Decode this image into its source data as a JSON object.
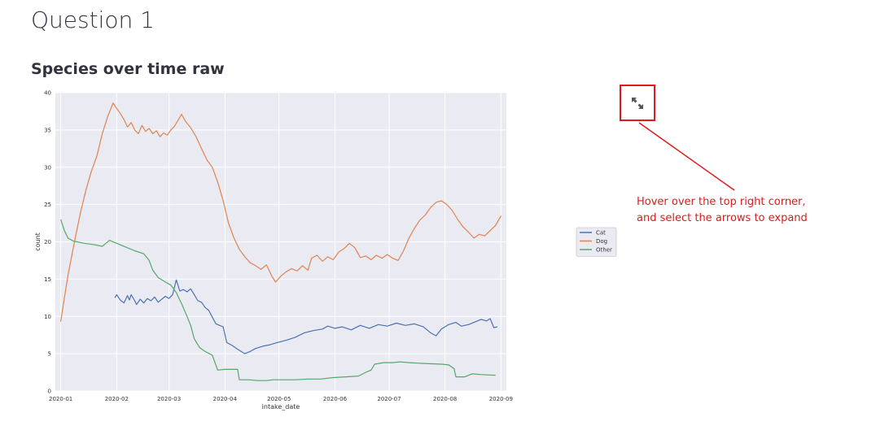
{
  "page": {
    "title": "Question 1",
    "section_title": "Species over time raw",
    "annotation": {
      "line1": "Hover over the top right corner,",
      "line2": "and select the arrows to expand"
    },
    "icons": {
      "expand": "expand-arrows-icon"
    },
    "colors": {
      "annotation": "#e0191b"
    }
  },
  "chart_data": {
    "type": "line",
    "title": "",
    "xlabel": "intake_date",
    "ylabel": "count",
    "ylim": [
      0,
      40
    ],
    "xlim": [
      "2019-12-29",
      "2020-09-04"
    ],
    "x_ticks": [
      "2020-01",
      "2020-02",
      "2020-03",
      "2020-04",
      "2020-05",
      "2020-06",
      "2020-07",
      "2020-08",
      "2020-09"
    ],
    "y_ticks": [
      0,
      5,
      10,
      15,
      20,
      25,
      30,
      35,
      40
    ],
    "grid": true,
    "legend": "right-outside",
    "series": [
      {
        "name": "Cat",
        "color": "#4c72b0",
        "points": [
          [
            "2020-01-31",
            12.5
          ],
          [
            "2020-02-01",
            12.9
          ],
          [
            "2020-02-03",
            12.2
          ],
          [
            "2020-02-05",
            11.8
          ],
          [
            "2020-02-07",
            12.8
          ],
          [
            "2020-02-08",
            12.2
          ],
          [
            "2020-02-09",
            12.9
          ],
          [
            "2020-02-11",
            12.1
          ],
          [
            "2020-02-12",
            11.6
          ],
          [
            "2020-02-14",
            12.3
          ],
          [
            "2020-02-16",
            11.8
          ],
          [
            "2020-02-18",
            12.4
          ],
          [
            "2020-02-20",
            12.1
          ],
          [
            "2020-02-22",
            12.6
          ],
          [
            "2020-02-24",
            11.9
          ],
          [
            "2020-02-26",
            12.3
          ],
          [
            "2020-02-28",
            12.7
          ],
          [
            "2020-03-01",
            12.4
          ],
          [
            "2020-03-03",
            12.9
          ],
          [
            "2020-03-05",
            14.9
          ],
          [
            "2020-03-07",
            13.4
          ],
          [
            "2020-03-09",
            13.6
          ],
          [
            "2020-03-11",
            13.3
          ],
          [
            "2020-03-13",
            13.7
          ],
          [
            "2020-03-15",
            12.9
          ],
          [
            "2020-03-17",
            12.1
          ],
          [
            "2020-03-19",
            11.9
          ],
          [
            "2020-03-21",
            11.2
          ],
          [
            "2020-03-23",
            10.8
          ],
          [
            "2020-03-25",
            9.9
          ],
          [
            "2020-03-27",
            9.0
          ],
          [
            "2020-03-31",
            8.6
          ],
          [
            "2020-04-02",
            6.5
          ],
          [
            "2020-04-05",
            6.1
          ],
          [
            "2020-04-08",
            5.6
          ],
          [
            "2020-04-12",
            5.0
          ],
          [
            "2020-04-15",
            5.3
          ],
          [
            "2020-04-18",
            5.7
          ],
          [
            "2020-04-22",
            6.0
          ],
          [
            "2020-04-26",
            6.2
          ],
          [
            "2020-04-30",
            6.5
          ],
          [
            "2020-05-05",
            6.8
          ],
          [
            "2020-05-10",
            7.2
          ],
          [
            "2020-05-15",
            7.8
          ],
          [
            "2020-05-20",
            8.1
          ],
          [
            "2020-05-25",
            8.3
          ],
          [
            "2020-05-28",
            8.7
          ],
          [
            "2020-06-01",
            8.4
          ],
          [
            "2020-06-05",
            8.6
          ],
          [
            "2020-06-10",
            8.2
          ],
          [
            "2020-06-15",
            8.8
          ],
          [
            "2020-06-20",
            8.4
          ],
          [
            "2020-06-25",
            8.9
          ],
          [
            "2020-06-30",
            8.7
          ],
          [
            "2020-07-05",
            9.1
          ],
          [
            "2020-07-10",
            8.8
          ],
          [
            "2020-07-15",
            9.0
          ],
          [
            "2020-07-20",
            8.6
          ],
          [
            "2020-07-24",
            7.8
          ],
          [
            "2020-07-27",
            7.4
          ],
          [
            "2020-07-30",
            8.3
          ],
          [
            "2020-08-03",
            8.9
          ],
          [
            "2020-08-07",
            9.2
          ],
          [
            "2020-08-10",
            8.7
          ],
          [
            "2020-08-14",
            8.9
          ],
          [
            "2020-08-18",
            9.3
          ],
          [
            "2020-08-21",
            9.6
          ],
          [
            "2020-08-24",
            9.4
          ],
          [
            "2020-08-26",
            9.7
          ],
          [
            "2020-08-28",
            8.5
          ],
          [
            "2020-08-30",
            8.6
          ]
        ]
      },
      {
        "name": "Dog",
        "color": "#dd8452",
        "points": [
          [
            "2020-01-01",
            9.3
          ],
          [
            "2020-01-03",
            12.5
          ],
          [
            "2020-01-05",
            15.5
          ],
          [
            "2020-01-07",
            18.0
          ],
          [
            "2020-01-09",
            20.5
          ],
          [
            "2020-01-12",
            24.0
          ],
          [
            "2020-01-15",
            27.0
          ],
          [
            "2020-01-18",
            29.5
          ],
          [
            "2020-01-21",
            31.5
          ],
          [
            "2020-01-24",
            34.5
          ],
          [
            "2020-01-27",
            36.8
          ],
          [
            "2020-01-30",
            38.6
          ],
          [
            "2020-02-01",
            37.9
          ],
          [
            "2020-02-03",
            37.2
          ],
          [
            "2020-02-05",
            36.4
          ],
          [
            "2020-02-07",
            35.4
          ],
          [
            "2020-02-09",
            36.0
          ],
          [
            "2020-02-11",
            35.0
          ],
          [
            "2020-02-13",
            34.5
          ],
          [
            "2020-02-15",
            35.6
          ],
          [
            "2020-02-17",
            34.8
          ],
          [
            "2020-02-19",
            35.2
          ],
          [
            "2020-02-21",
            34.5
          ],
          [
            "2020-02-23",
            34.9
          ],
          [
            "2020-02-25",
            34.1
          ],
          [
            "2020-02-27",
            34.6
          ],
          [
            "2020-02-29",
            34.3
          ],
          [
            "2020-03-02",
            35.0
          ],
          [
            "2020-03-04",
            35.5
          ],
          [
            "2020-03-06",
            36.3
          ],
          [
            "2020-03-08",
            37.1
          ],
          [
            "2020-03-10",
            36.2
          ],
          [
            "2020-03-13",
            35.3
          ],
          [
            "2020-03-16",
            34.1
          ],
          [
            "2020-03-19",
            32.5
          ],
          [
            "2020-03-22",
            31.0
          ],
          [
            "2020-03-25",
            30.0
          ],
          [
            "2020-03-28",
            28.0
          ],
          [
            "2020-03-31",
            25.5
          ],
          [
            "2020-04-03",
            22.5
          ],
          [
            "2020-04-06",
            20.5
          ],
          [
            "2020-04-09",
            19.0
          ],
          [
            "2020-04-12",
            18.0
          ],
          [
            "2020-04-15",
            17.2
          ],
          [
            "2020-04-18",
            16.8
          ],
          [
            "2020-04-21",
            16.3
          ],
          [
            "2020-04-24",
            16.9
          ],
          [
            "2020-04-27",
            15.4
          ],
          [
            "2020-04-29",
            14.6
          ],
          [
            "2020-05-02",
            15.4
          ],
          [
            "2020-05-05",
            16.0
          ],
          [
            "2020-05-08",
            16.4
          ],
          [
            "2020-05-11",
            16.1
          ],
          [
            "2020-05-14",
            16.8
          ],
          [
            "2020-05-17",
            16.2
          ],
          [
            "2020-05-19",
            17.8
          ],
          [
            "2020-05-22",
            18.2
          ],
          [
            "2020-05-25",
            17.4
          ],
          [
            "2020-05-28",
            18.0
          ],
          [
            "2020-05-31",
            17.6
          ],
          [
            "2020-06-03",
            18.6
          ],
          [
            "2020-06-06",
            19.1
          ],
          [
            "2020-06-09",
            19.8
          ],
          [
            "2020-06-12",
            19.2
          ],
          [
            "2020-06-15",
            17.9
          ],
          [
            "2020-06-18",
            18.1
          ],
          [
            "2020-06-21",
            17.6
          ],
          [
            "2020-06-24",
            18.2
          ],
          [
            "2020-06-27",
            17.8
          ],
          [
            "2020-06-30",
            18.3
          ],
          [
            "2020-07-03",
            17.8
          ],
          [
            "2020-07-06",
            17.5
          ],
          [
            "2020-07-09",
            18.8
          ],
          [
            "2020-07-12",
            20.5
          ],
          [
            "2020-07-15",
            21.8
          ],
          [
            "2020-07-18",
            22.9
          ],
          [
            "2020-07-21",
            23.6
          ],
          [
            "2020-07-24",
            24.6
          ],
          [
            "2020-07-27",
            25.3
          ],
          [
            "2020-07-30",
            25.5
          ],
          [
            "2020-08-02",
            25.0
          ],
          [
            "2020-08-05",
            24.2
          ],
          [
            "2020-08-08",
            23.0
          ],
          [
            "2020-08-11",
            22.0
          ],
          [
            "2020-08-14",
            21.3
          ],
          [
            "2020-08-17",
            20.5
          ],
          [
            "2020-08-20",
            21.0
          ],
          [
            "2020-08-23",
            20.8
          ],
          [
            "2020-08-26",
            21.5
          ],
          [
            "2020-08-29",
            22.2
          ],
          [
            "2020-09-01",
            23.5
          ]
        ]
      },
      {
        "name": "Other",
        "color": "#55a868",
        "points": [
          [
            "2020-01-01",
            23.0
          ],
          [
            "2020-01-03",
            21.5
          ],
          [
            "2020-01-05",
            20.5
          ],
          [
            "2020-01-08",
            20.1
          ],
          [
            "2020-01-14",
            19.8
          ],
          [
            "2020-01-20",
            19.6
          ],
          [
            "2020-01-24",
            19.4
          ],
          [
            "2020-01-28",
            20.2
          ],
          [
            "2020-02-01",
            19.8
          ],
          [
            "2020-02-06",
            19.3
          ],
          [
            "2020-02-11",
            18.8
          ],
          [
            "2020-02-16",
            18.4
          ],
          [
            "2020-02-19",
            17.5
          ],
          [
            "2020-02-21",
            16.2
          ],
          [
            "2020-02-24",
            15.2
          ],
          [
            "2020-02-28",
            14.6
          ],
          [
            "2020-03-02",
            14.2
          ],
          [
            "2020-03-05",
            13.2
          ],
          [
            "2020-03-08",
            11.7
          ],
          [
            "2020-03-11",
            10.0
          ],
          [
            "2020-03-13",
            8.8
          ],
          [
            "2020-03-15",
            7.0
          ],
          [
            "2020-03-18",
            5.8
          ],
          [
            "2020-03-21",
            5.3
          ],
          [
            "2020-03-25",
            4.8
          ],
          [
            "2020-03-28",
            2.8
          ],
          [
            "2020-04-01",
            2.9
          ],
          [
            "2020-04-05",
            2.9
          ],
          [
            "2020-04-08",
            2.9
          ],
          [
            "2020-04-09",
            1.5
          ],
          [
            "2020-04-14",
            1.5
          ],
          [
            "2020-04-19",
            1.4
          ],
          [
            "2020-04-24",
            1.4
          ],
          [
            "2020-04-28",
            1.5
          ],
          [
            "2020-05-03",
            1.5
          ],
          [
            "2020-05-10",
            1.5
          ],
          [
            "2020-05-17",
            1.6
          ],
          [
            "2020-05-24",
            1.6
          ],
          [
            "2020-05-31",
            1.8
          ],
          [
            "2020-06-07",
            1.9
          ],
          [
            "2020-06-14",
            2.0
          ],
          [
            "2020-06-18",
            2.5
          ],
          [
            "2020-06-21",
            2.8
          ],
          [
            "2020-06-23",
            3.6
          ],
          [
            "2020-06-28",
            3.8
          ],
          [
            "2020-07-03",
            3.8
          ],
          [
            "2020-07-07",
            3.9
          ],
          [
            "2020-07-12",
            3.8
          ],
          [
            "2020-07-20",
            3.7
          ],
          [
            "2020-07-30",
            3.6
          ],
          [
            "2020-08-03",
            3.5
          ],
          [
            "2020-08-06",
            3.0
          ],
          [
            "2020-08-07",
            1.9
          ],
          [
            "2020-08-12",
            1.9
          ],
          [
            "2020-08-16",
            2.3
          ],
          [
            "2020-08-21",
            2.2
          ],
          [
            "2020-08-29",
            2.1
          ]
        ]
      }
    ]
  }
}
